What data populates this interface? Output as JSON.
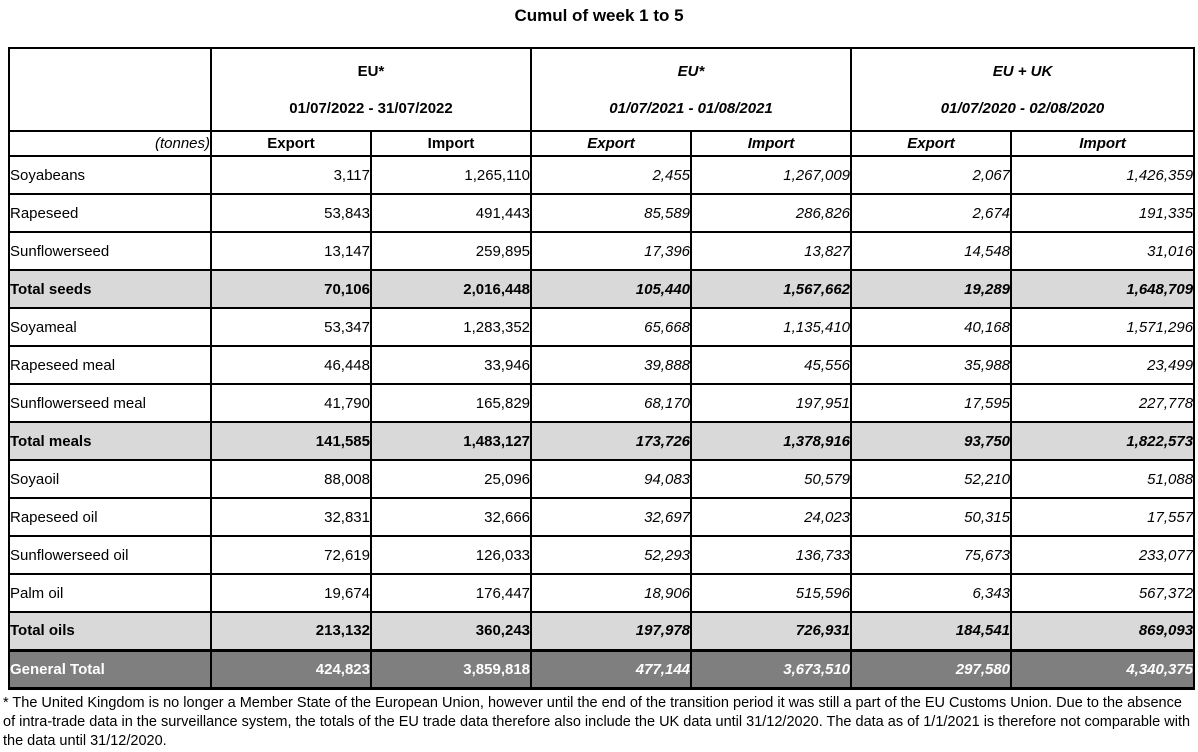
{
  "title": "Cumul of week 1 to 5",
  "unit_label": "(tonnes)",
  "col_headers": [
    "Export",
    "Import"
  ],
  "groups": [
    {
      "name": "EU*",
      "period": "01/07/2022 - 31/07/2022",
      "italic": false
    },
    {
      "name": "EU*",
      "period": "01/07/2021 - 01/08/2021",
      "italic": true
    },
    {
      "name": "EU + UK",
      "period": "01/07/2020 - 02/08/2020",
      "italic": true
    }
  ],
  "footnote": "* The United Kingdom is no longer a Member State of the European Union, however until the end of the transition period it was still a part of the EU Customs Union. Due to the absence of intra-trade data in the surveillance system, the totals of the EU trade data  therefore also include the UK data until 31/12/2020. The data as of 1/1/2021 is therefore not comparable with the data until 31/12/2020.",
  "colors": {
    "total_row_bg": "#d9d9d9",
    "grand_total_bg": "#7f7f7f",
    "grand_total_text": "#ffffff",
    "border": "#000000"
  },
  "chart_data": {
    "type": "table",
    "title": "Cumul of week 1 to 5",
    "unit": "tonnes",
    "column_groups": [
      {
        "name": "EU*",
        "period": "01/07/2022 - 31/07/2022"
      },
      {
        "name": "EU*",
        "period": "01/07/2021 - 01/08/2021"
      },
      {
        "name": "EU + UK",
        "period": "01/07/2020 - 02/08/2020"
      }
    ],
    "columns": [
      "Export 01/07/2022 - 31/07/2022",
      "Import 01/07/2022 - 31/07/2022",
      "Export 01/07/2021 - 01/08/2021",
      "Import 01/07/2021 - 01/08/2021",
      "Export 01/07/2020 - 02/08/2020",
      "Import 01/07/2020 - 02/08/2020"
    ],
    "rows": [
      {
        "label": "Soyabeans",
        "style": "data",
        "values": [
          3117,
          1265110,
          2455,
          1267009,
          2067,
          1426359
        ]
      },
      {
        "label": "Rapeseed",
        "style": "data",
        "values": [
          53843,
          491443,
          85589,
          286826,
          2674,
          191335
        ]
      },
      {
        "label": "Sunflowerseed",
        "style": "data",
        "values": [
          13147,
          259895,
          17396,
          13827,
          14548,
          31016
        ]
      },
      {
        "label": "Total seeds",
        "style": "total",
        "values": [
          70106,
          2016448,
          105440,
          1567662,
          19289,
          1648709
        ]
      },
      {
        "label": "Soyameal",
        "style": "data",
        "values": [
          53347,
          1283352,
          65668,
          1135410,
          40168,
          1571296
        ]
      },
      {
        "label": "Rapeseed meal",
        "style": "data",
        "values": [
          46448,
          33946,
          39888,
          45556,
          35988,
          23499
        ]
      },
      {
        "label": "Sunflowerseed meal",
        "style": "data",
        "values": [
          41790,
          165829,
          68170,
          197951,
          17595,
          227778
        ]
      },
      {
        "label": "Total meals",
        "style": "total",
        "values": [
          141585,
          1483127,
          173726,
          1378916,
          93750,
          1822573
        ]
      },
      {
        "label": "Soyaoil",
        "style": "data",
        "values": [
          88008,
          25096,
          94083,
          50579,
          52210,
          51088
        ]
      },
      {
        "label": "Rapeseed oil",
        "style": "data",
        "values": [
          32831,
          32666,
          32697,
          24023,
          50315,
          17557
        ]
      },
      {
        "label": "Sunflowerseed oil",
        "style": "data",
        "values": [
          72619,
          126033,
          52293,
          136733,
          75673,
          233077
        ]
      },
      {
        "label": "Palm oil",
        "style": "data",
        "values": [
          19674,
          176447,
          18906,
          515596,
          6343,
          567372
        ]
      },
      {
        "label": "Total oils",
        "style": "total",
        "values": [
          213132,
          360243,
          197978,
          726931,
          184541,
          869093
        ]
      },
      {
        "label": "General Total",
        "style": "grand",
        "values": [
          424823,
          3859818,
          477144,
          3673510,
          297580,
          4340375
        ]
      }
    ]
  }
}
